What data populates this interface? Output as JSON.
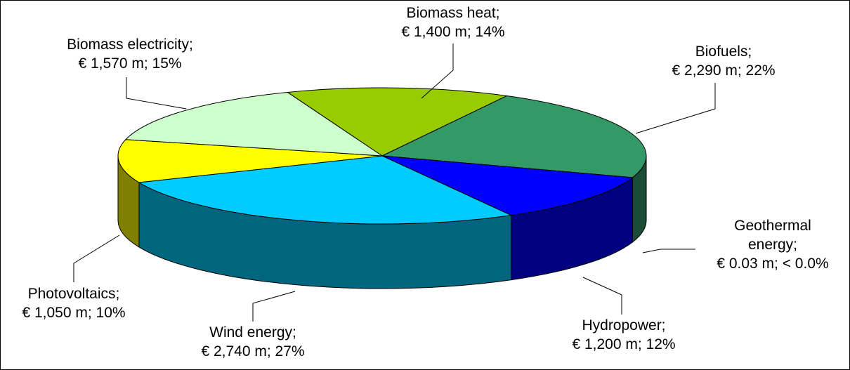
{
  "chart_data": {
    "type": "pie",
    "categories": [
      "Biomass heat;",
      "Biofuels;",
      "Geothermal energy;",
      "Hydropower;",
      "Wind energy;",
      "Photovoltaics;",
      "Biomass electricity;"
    ],
    "values": [
      1400,
      2290,
      0.03,
      1200,
      2740,
      1050,
      1570
    ],
    "value_labels": [
      "€ 1,400 m; 14%",
      "€ 2,290 m; 22%",
      "€ 0.03 m; < 0.0%",
      "€ 1,200 m; 12%",
      "€ 2,740 m; 27%",
      "€ 1,050 m; 10%",
      "€ 1,570 m; 15%"
    ],
    "colors": [
      "#99cc00",
      "#339966",
      "#663300",
      "#0000ff",
      "#00ccff",
      "#ffff00",
      "#ccffcc"
    ]
  }
}
